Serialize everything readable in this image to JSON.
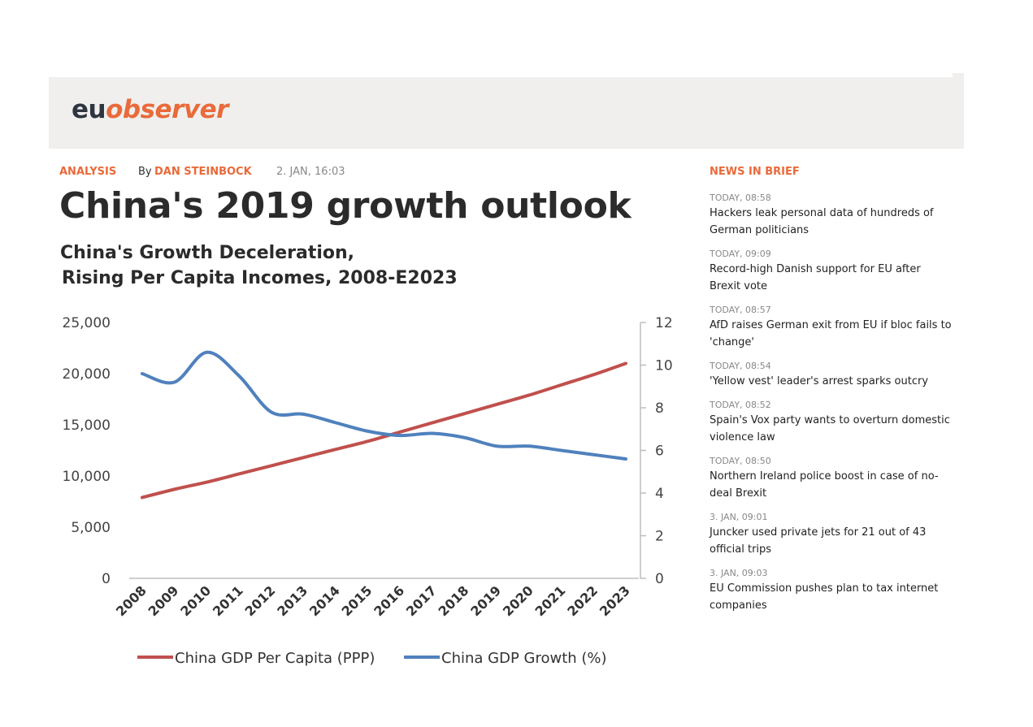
{
  "site": {
    "logo_prefix": "eu",
    "logo_suffix": "observer"
  },
  "article": {
    "category": "ANALYSIS",
    "by": "By",
    "author": "DAN STEINBOCK",
    "date": "2. JAN, 16:03",
    "title": "China's 2019 growth outlook"
  },
  "colors": {
    "accent": "#e96a3a",
    "per_capita": "#c0504d",
    "growth": "#4f81bd"
  },
  "chart_data": {
    "type": "line",
    "title_line1": "China's Growth Deceleration,",
    "title_line2": "Rising Per Capita Incomes, 2008-E2023",
    "categories": [
      "2008",
      "2009",
      "2010",
      "2011",
      "2012",
      "2013",
      "2014",
      "2015",
      "2016",
      "2017",
      "2018",
      "2019",
      "2020",
      "2021",
      "2022",
      "2023"
    ],
    "left_axis": {
      "ylim": [
        0,
        25000
      ],
      "ticks": [
        "0",
        "5,000",
        "10,000",
        "15,000",
        "20,000",
        "25,000"
      ]
    },
    "right_axis": {
      "ylim": [
        0,
        12
      ],
      "ticks": [
        "0",
        "2",
        "4",
        "6",
        "8",
        "10",
        "12"
      ]
    },
    "series": [
      {
        "name": "China GDP Per Capita (PPP)",
        "axis": "left",
        "color": "#c0504d",
        "values": [
          7900,
          8700,
          9400,
          10200,
          11000,
          11800,
          12600,
          13400,
          14300,
          15200,
          16100,
          17000,
          17900,
          18900,
          19900,
          21000
        ]
      },
      {
        "name": "China GDP Growth (%)",
        "axis": "right",
        "color": "#4f81bd",
        "values": [
          9.6,
          9.2,
          10.6,
          9.5,
          7.8,
          7.7,
          7.3,
          6.9,
          6.7,
          6.8,
          6.6,
          6.2,
          6.2,
          6.0,
          5.8,
          5.6
        ]
      }
    ],
    "legend_position": "bottom",
    "grid": false
  },
  "sidebar": {
    "heading": "NEWS IN BRIEF",
    "items": [
      {
        "time": "TODAY, 08:58",
        "title": "Hackers leak personal data of hundreds of German politicians"
      },
      {
        "time": "TODAY, 09:09",
        "title": "Record-high Danish support for EU after Brexit vote"
      },
      {
        "time": "TODAY, 08:57",
        "title": "AfD raises German exit from EU if bloc fails to 'change'"
      },
      {
        "time": "TODAY, 08:54",
        "title": "'Yellow vest' leader's arrest sparks outcry"
      },
      {
        "time": "TODAY, 08:52",
        "title": "Spain's Vox party wants to overturn domestic violence law"
      },
      {
        "time": "TODAY, 08:50",
        "title": "Northern Ireland police boost in case of no-deal Brexit"
      },
      {
        "time": "3. JAN, 09:01",
        "title": "Juncker used private jets for 21 out of 43 official trips"
      },
      {
        "time": "3. JAN, 09:03",
        "title": "EU Commission pushes plan to tax internet companies"
      }
    ]
  }
}
